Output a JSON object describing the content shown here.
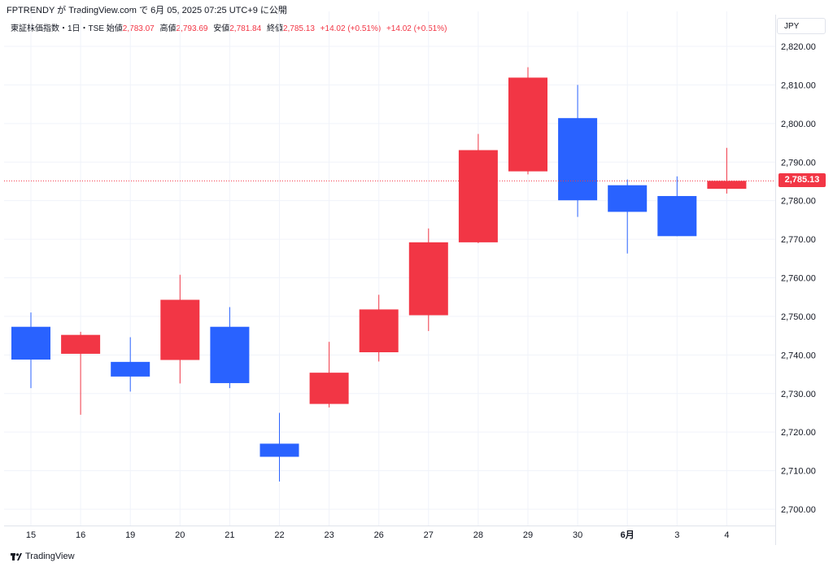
{
  "header": {
    "publish_line": "FPTRENDY が TradingView.com で 6月 05, 2025 07:25 UTC+9 に公開"
  },
  "legend": {
    "symbol": "東証株価指数・1日・TSE",
    "open_label": "始値",
    "open": "2,783.07",
    "high_label": "高値",
    "high": "2,793.69",
    "low_label": "安値",
    "low": "2,781.84",
    "close_label": "終値",
    "close": "2,785.13",
    "change1": "+14.02 (+0.51%)",
    "change2": "+14.02 (+0.51%)"
  },
  "currency": "JPY",
  "last_price_label": "2,785.13",
  "footer": {
    "brand": "TradingView"
  },
  "colors": {
    "up": "#f23645",
    "down": "#2962ff",
    "grid": "#f0f3fa"
  },
  "chart_data": {
    "type": "candlestick",
    "ylim": [
      2695,
      2825
    ],
    "y_ticks": [
      {
        "value": 2700,
        "label": "2,700.00"
      },
      {
        "value": 2710,
        "label": "2,710.00"
      },
      {
        "value": 2720,
        "label": "2,720.00"
      },
      {
        "value": 2730,
        "label": "2,730.00"
      },
      {
        "value": 2740,
        "label": "2,740.00"
      },
      {
        "value": 2750,
        "label": "2,750.00"
      },
      {
        "value": 2760,
        "label": "2,760.00"
      },
      {
        "value": 2770,
        "label": "2,770.00"
      },
      {
        "value": 2780,
        "label": "2,780.00"
      },
      {
        "value": 2790,
        "label": "2,790.00"
      },
      {
        "value": 2800,
        "label": "2,800.00"
      },
      {
        "value": 2810,
        "label": "2,810.00"
      },
      {
        "value": 2820,
        "label": "2,820.00"
      }
    ],
    "last_price": 2785.13,
    "x_labels": [
      "15",
      "16",
      "19",
      "20",
      "21",
      "22",
      "23",
      "26",
      "27",
      "28",
      "29",
      "30",
      "6月",
      "3",
      "4"
    ],
    "candles": [
      {
        "date": "15",
        "open": 2747.3,
        "high": 2751.0,
        "low": 2731.4,
        "close": 2738.8
      },
      {
        "date": "16",
        "open": 2740.3,
        "high": 2746.0,
        "low": 2724.5,
        "close": 2745.2
      },
      {
        "date": "19",
        "open": 2738.2,
        "high": 2744.6,
        "low": 2730.5,
        "close": 2734.4
      },
      {
        "date": "20",
        "open": 2738.7,
        "high": 2760.8,
        "low": 2732.6,
        "close": 2754.3
      },
      {
        "date": "21",
        "open": 2747.3,
        "high": 2752.4,
        "low": 2731.4,
        "close": 2732.7
      },
      {
        "date": "22",
        "open": 2717.0,
        "high": 2725.0,
        "low": 2707.2,
        "close": 2713.6
      },
      {
        "date": "23",
        "open": 2727.3,
        "high": 2743.4,
        "low": 2726.4,
        "close": 2735.4
      },
      {
        "date": "26",
        "open": 2740.7,
        "high": 2755.6,
        "low": 2738.3,
        "close": 2751.8
      },
      {
        "date": "27",
        "open": 2750.3,
        "high": 2772.8,
        "low": 2746.2,
        "close": 2769.2
      },
      {
        "date": "28",
        "open": 2769.2,
        "high": 2797.3,
        "low": 2769.0,
        "close": 2793.1
      },
      {
        "date": "29",
        "open": 2787.6,
        "high": 2814.6,
        "low": 2786.8,
        "close": 2811.9
      },
      {
        "date": "30",
        "open": 2801.4,
        "high": 2810.0,
        "low": 2775.8,
        "close": 2780.1
      },
      {
        "date": "6月",
        "open": 2784.0,
        "high": 2785.5,
        "low": 2766.3,
        "close": 2777.1
      },
      {
        "date": "3",
        "open": 2781.2,
        "high": 2786.3,
        "low": 2770.8,
        "close": 2770.8
      },
      {
        "date": "4",
        "open": 2783.07,
        "high": 2793.69,
        "low": 2781.84,
        "close": 2785.13
      }
    ]
  }
}
